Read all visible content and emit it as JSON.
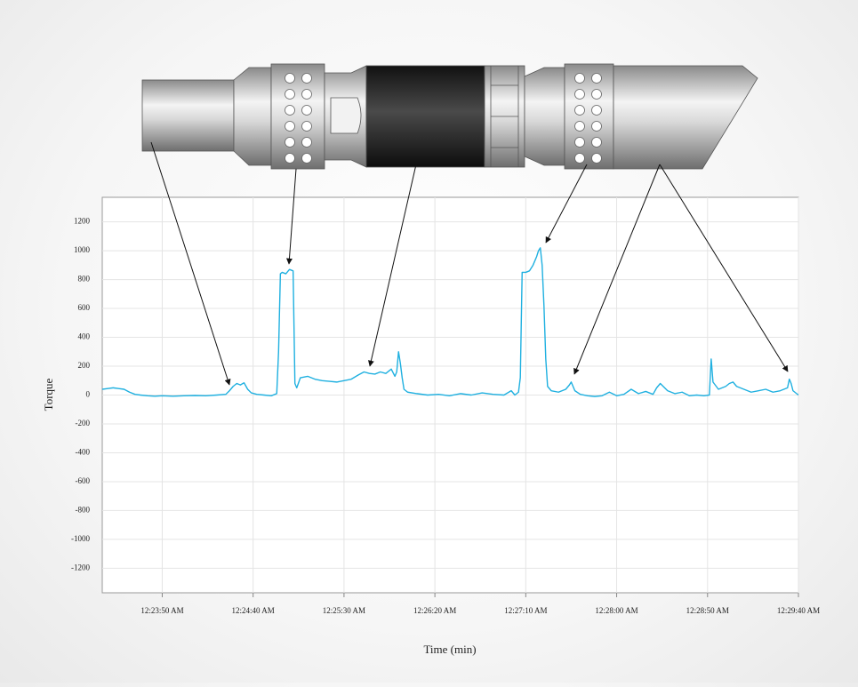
{
  "chart_data": {
    "type": "line",
    "ylabel": "Torque",
    "xlabel": "Time (min)",
    "color": "#1fb0e0",
    "grid": true,
    "xlim": [
      1397,
      1780
    ],
    "ylim": [
      -1370,
      1370
    ],
    "xticks": [
      {
        "value": 1430,
        "label": "12:23:50 AM"
      },
      {
        "value": 1480,
        "label": "12:24:40 AM"
      },
      {
        "value": 1530,
        "label": "12:25:30 AM"
      },
      {
        "value": 1580,
        "label": "12:26:20 AM"
      },
      {
        "value": 1630,
        "label": "12:27:10 AM"
      },
      {
        "value": 1680,
        "label": "12:28:00 AM"
      },
      {
        "value": 1730,
        "label": "12:28:50 AM"
      },
      {
        "value": 1780,
        "label": "12:29:40 AM"
      }
    ],
    "yticks": [
      -1200,
      -1000,
      -800,
      -600,
      -400,
      -200,
      0,
      200,
      400,
      600,
      800,
      1000,
      1200
    ],
    "x": [
      1397,
      1400,
      1403,
      1406,
      1409,
      1412,
      1415,
      1418,
      1422,
      1426,
      1430,
      1436,
      1442,
      1448,
      1454,
      1460,
      1465,
      1467,
      1469,
      1471,
      1473,
      1475,
      1477,
      1479,
      1482,
      1486,
      1490,
      1493,
      1494,
      1495,
      1496,
      1498,
      1500,
      1502,
      1503,
      1504,
      1506,
      1510,
      1514,
      1518,
      1522,
      1526,
      1530,
      1534,
      1538,
      1541,
      1544,
      1547,
      1550,
      1553,
      1556,
      1558,
      1559,
      1560,
      1561,
      1562,
      1563,
      1565,
      1570,
      1576,
      1582,
      1588,
      1594,
      1600,
      1606,
      1612,
      1618,
      1622,
      1624,
      1626,
      1627,
      1628,
      1630,
      1632,
      1634,
      1636,
      1637,
      1638,
      1639,
      1640,
      1641,
      1642,
      1644,
      1648,
      1652,
      1654,
      1655,
      1657,
      1660,
      1664,
      1668,
      1672,
      1676,
      1680,
      1684,
      1688,
      1692,
      1696,
      1700,
      1702,
      1704,
      1708,
      1712,
      1716,
      1720,
      1724,
      1728,
      1731,
      1732,
      1733,
      1736,
      1740,
      1742,
      1744,
      1746,
      1750,
      1754,
      1758,
      1762,
      1766,
      1770,
      1774,
      1775,
      1776,
      1777,
      1779,
      1780
    ],
    "values": [
      40,
      45,
      50,
      45,
      40,
      20,
      5,
      0,
      -5,
      -8,
      -5,
      -8,
      -5,
      -3,
      -5,
      0,
      5,
      30,
      60,
      80,
      70,
      85,
      40,
      15,
      5,
      0,
      -5,
      10,
      300,
      840,
      850,
      840,
      870,
      860,
      80,
      50,
      120,
      130,
      110,
      100,
      95,
      90,
      100,
      110,
      140,
      160,
      150,
      145,
      160,
      150,
      180,
      130,
      160,
      300,
      220,
      120,
      40,
      20,
      10,
      0,
      5,
      -5,
      10,
      0,
      15,
      5,
      0,
      30,
      0,
      20,
      120,
      850,
      850,
      860,
      900,
      960,
      1000,
      1020,
      900,
      620,
      250,
      60,
      30,
      20,
      40,
      70,
      90,
      30,
      5,
      -5,
      -10,
      -5,
      20,
      -5,
      5,
      40,
      10,
      25,
      5,
      50,
      80,
      30,
      10,
      20,
      -5,
      0,
      -5,
      0,
      250,
      90,
      40,
      60,
      80,
      90,
      60,
      40,
      20,
      30,
      40,
      20,
      30,
      50,
      110,
      80,
      30,
      10,
      0
    ]
  }
}
